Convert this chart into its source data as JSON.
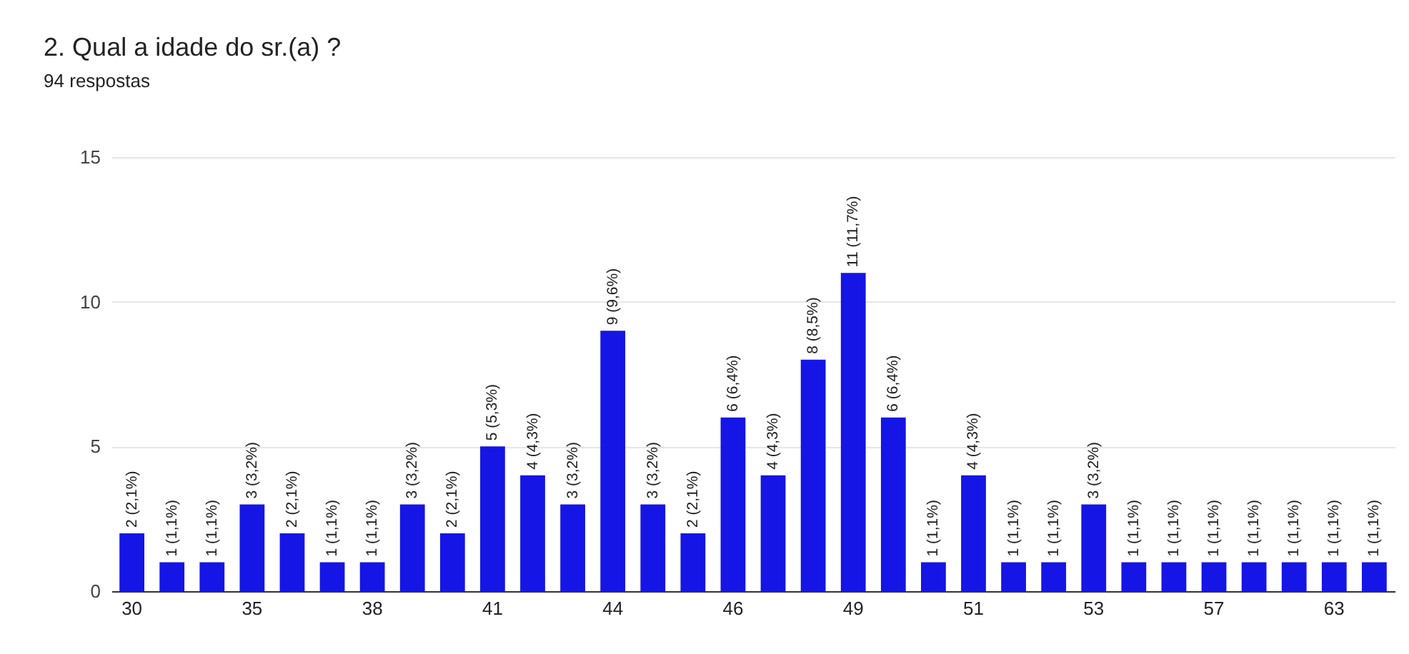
{
  "chart_data": {
    "type": "bar",
    "title": "2. Qual a idade do sr.(a) ?",
    "subtitle": "94 respostas",
    "categories": [
      "30",
      null,
      null,
      "35",
      null,
      null,
      "38",
      null,
      null,
      "41",
      null,
      null,
      "44",
      null,
      null,
      "46",
      null,
      null,
      "49",
      null,
      null,
      "51",
      null,
      null,
      "53",
      null,
      null,
      "57",
      null,
      null,
      "63",
      null
    ],
    "values": [
      2,
      1,
      1,
      3,
      2,
      1,
      1,
      3,
      2,
      5,
      4,
      3,
      9,
      3,
      2,
      6,
      4,
      8,
      11,
      6,
      1,
      4,
      1,
      1,
      3,
      1,
      1,
      1,
      1,
      1,
      1,
      1
    ],
    "value_labels": [
      "2 (2,1%)",
      "1 (1,1%)",
      "1 (1,1%)",
      "3 (3,2%)",
      "2 (2,1%)",
      "1 (1,1%)",
      "1 (1,1%)",
      "3 (3,2%)",
      "2 (2,1%)",
      "5 (5,3%)",
      "4 (4,3%)",
      "3 (3,2%)",
      "9 (9,6%)",
      "3 (3,2%)",
      "2 (2,1%)",
      "6 (6,4%)",
      "4 (4,3%)",
      "8 (8,5%)",
      "11 (11,7%)",
      "6 (6,4%)",
      "1 (1,1%)",
      "4 (4,3%)",
      "1 (1,1%)",
      "1 (1,1%)",
      "3 (3,2%)",
      "1 (1,1%)",
      "1 (1,1%)",
      "1 (1,1%)",
      "1 (1,1%)",
      "1 (1,1%)",
      "1 (1,1%)",
      "1 (1,1%)"
    ],
    "color": "#1515e6",
    "ylim": [
      0,
      15
    ],
    "yticks": [
      0,
      5,
      10,
      15
    ],
    "grid": "y"
  }
}
